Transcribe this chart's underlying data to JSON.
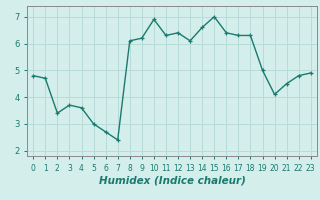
{
  "x": [
    0,
    1,
    2,
    3,
    4,
    5,
    6,
    7,
    8,
    9,
    10,
    11,
    12,
    13,
    14,
    15,
    16,
    17,
    18,
    19,
    20,
    21,
    22,
    23
  ],
  "y": [
    4.8,
    4.7,
    3.4,
    3.7,
    3.6,
    3.0,
    2.7,
    2.4,
    6.1,
    6.2,
    6.9,
    6.3,
    6.4,
    6.1,
    6.6,
    7.0,
    6.4,
    6.3,
    6.3,
    5.0,
    4.1,
    4.5,
    4.8,
    4.9
  ],
  "xlabel": "Humidex (Indice chaleur)",
  "ylim": [
    1.8,
    7.4
  ],
  "xlim": [
    -0.5,
    23.5
  ],
  "yticks": [
    2,
    3,
    4,
    5,
    6,
    7
  ],
  "xticks": [
    0,
    1,
    2,
    3,
    4,
    5,
    6,
    7,
    8,
    9,
    10,
    11,
    12,
    13,
    14,
    15,
    16,
    17,
    18,
    19,
    20,
    21,
    22,
    23
  ],
  "line_color": "#1a7a6e",
  "bg_color": "#d4eeec",
  "grid_color": "#b8dbd9",
  "marker": "+",
  "marker_size": 3.5,
  "line_width": 1.0,
  "tick_label_fontsize": 5.5,
  "xlabel_fontsize": 7.5
}
